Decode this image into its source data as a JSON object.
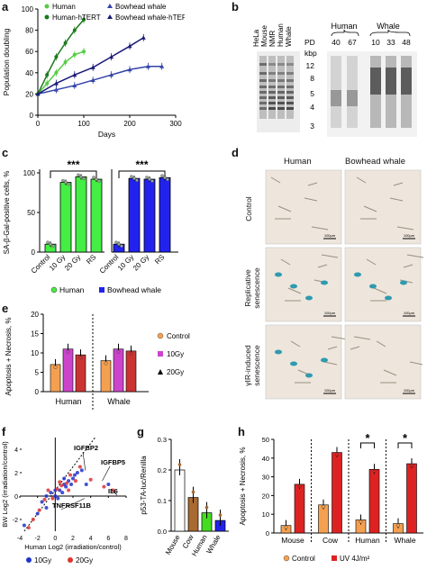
{
  "figure": {
    "panel_labels": [
      "a",
      "b",
      "c",
      "d",
      "e",
      "f",
      "g",
      "h"
    ]
  },
  "panel_a": {
    "legend": [
      "Human",
      "Human-hTERT",
      "Bowhead whale",
      "Bowhead whale-hTERT"
    ],
    "xlabel": "Days",
    "ylabel": "Population doubling",
    "xticks": [
      "0",
      "100",
      "200",
      "300"
    ],
    "yticks": [
      "0",
      "20",
      "40",
      "60",
      "80",
      "100"
    ]
  },
  "panel_b": {
    "lanes": [
      "HeLa",
      "Mouse",
      "NMR",
      "Human",
      "Whale"
    ],
    "group_human": "Human",
    "group_whale": "Whale",
    "pd_label": "PD",
    "pd_values": [
      "40",
      "67",
      "10",
      "33",
      "48"
    ],
    "kbp_label": "kbp",
    "kbp_values": [
      "12",
      "8",
      "5",
      "4",
      "3"
    ]
  },
  "panel_c": {
    "ylabel": "SA-β-Gal-positive cells, %",
    "categories": [
      "Control",
      "10 Gy",
      "20 Gy",
      "RS"
    ],
    "yticks": [
      "0",
      "50",
      "100"
    ],
    "sig": [
      "***",
      "***"
    ],
    "legend": [
      "Human",
      "Bowhead whale"
    ]
  },
  "panel_d": {
    "col_headers": [
      "Human",
      "Bowhead whale"
    ],
    "row_labels": [
      "Control",
      "Replicative senescence",
      "γIR-induced senescence"
    ],
    "scale_bar": "100μm"
  },
  "panel_e": {
    "ylabel": "Apoptosis + Necrosis, %",
    "yticks": [
      "0",
      "5",
      "10",
      "15",
      "20"
    ],
    "groups": [
      "Human",
      "Whale"
    ],
    "legend": [
      "Control",
      "10Gy",
      "20Gy"
    ]
  },
  "panel_f": {
    "xlabel": "Human Log2 (irradiation/control)",
    "ylabel": "BW Log2 (irradiation/control)",
    "xticks": [
      "-4",
      "-2",
      "0",
      "2",
      "4",
      "6",
      "8"
    ],
    "yticks": [
      "-2",
      "0",
      "2",
      "4"
    ],
    "annotations": [
      "IGFBP2",
      "IGFBP5",
      "IL6",
      "TNFRSF11B"
    ],
    "legend": [
      "10Gy",
      "20Gy"
    ]
  },
  "panel_g": {
    "ylabel": "p53-TA-luc/Renilla",
    "categories": [
      "Mouse",
      "Cow",
      "Human",
      "Whale"
    ],
    "yticks": [
      "0.0",
      "0.1",
      "0.2",
      "0.3"
    ]
  },
  "panel_h": {
    "ylabel": "Apoptosis + Necrosis, %",
    "groups": [
      "Mouse",
      "Cow",
      "Human",
      "Whale"
    ],
    "yticks": [
      "0",
      "10",
      "20",
      "30",
      "40",
      "50"
    ],
    "sig": [
      "*",
      "*"
    ],
    "legend": [
      "Control",
      "UV 4J/m²"
    ]
  },
  "chart_data": [
    {
      "panel": "a",
      "type": "line",
      "xlabel": "Days",
      "ylabel": "Population doubling",
      "xlim": [
        0,
        300
      ],
      "ylim": [
        0,
        100
      ],
      "series": [
        {
          "name": "Human",
          "color": "#55cc44",
          "x": [
            0,
            20,
            40,
            60,
            80,
            100
          ],
          "y": [
            20,
            30,
            40,
            50,
            57,
            60
          ]
        },
        {
          "name": "Human-hTERT",
          "color": "#1a7a1a",
          "x": [
            0,
            20,
            40,
            60,
            80,
            100
          ],
          "y": [
            20,
            38,
            55,
            68,
            80,
            90
          ]
        },
        {
          "name": "Bowhead whale",
          "color": "#3344aa",
          "x": [
            0,
            40,
            80,
            120,
            160,
            200,
            240,
            270
          ],
          "y": [
            20,
            24,
            28,
            33,
            38,
            43,
            46,
            46
          ]
        },
        {
          "name": "Bowhead whale-hTERT",
          "color": "#1a1a77",
          "x": [
            0,
            40,
            80,
            120,
            160,
            200,
            230
          ],
          "y": [
            20,
            30,
            38,
            45,
            55,
            65,
            73
          ]
        }
      ]
    },
    {
      "panel": "c",
      "type": "bar",
      "ylabel": "SA-β-Gal-positive cells, %",
      "categories": [
        "Control",
        "10 Gy",
        "20 Gy",
        "RS"
      ],
      "ylim": [
        0,
        100
      ],
      "series": [
        {
          "name": "Human",
          "color": "#44ee44",
          "values": [
            10,
            88,
            95,
            92
          ]
        },
        {
          "name": "Bowhead whale",
          "color": "#2222ee",
          "values": [
            10,
            93,
            92,
            94
          ]
        }
      ]
    },
    {
      "panel": "e",
      "type": "bar",
      "ylabel": "Apoptosis + Necrosis, %",
      "categories": [
        "Human",
        "Whale"
      ],
      "ylim": [
        0,
        20
      ],
      "series": [
        {
          "name": "Control",
          "color": "#f5a050",
          "values": [
            7,
            8
          ]
        },
        {
          "name": "10Gy",
          "color": "#cc44cc",
          "values": [
            11,
            11
          ]
        },
        {
          "name": "20Gy",
          "color": "#cc3333",
          "values": [
            9.5,
            10.5
          ]
        }
      ]
    },
    {
      "panel": "f",
      "type": "scatter",
      "xlabel": "Human Log2 (irradiation/control)",
      "ylabel": "BW Log2 (irradiation/control)",
      "xlim": [
        -4,
        8
      ],
      "ylim": [
        -3,
        5
      ],
      "series": [
        {
          "name": "10Gy",
          "color": "#2233cc",
          "points": [
            [
              -3.5,
              -2.5
            ],
            [
              -2,
              -1.5
            ],
            [
              -1.5,
              -0.5
            ],
            [
              -1,
              0
            ],
            [
              -0.5,
              0.3
            ],
            [
              0,
              0.5
            ],
            [
              0,
              0
            ],
            [
              0.5,
              0.5
            ],
            [
              1,
              1
            ],
            [
              1.2,
              0.8
            ],
            [
              1.5,
              1.3
            ],
            [
              2,
              1.5
            ],
            [
              2.5,
              2
            ],
            [
              3,
              2.2
            ],
            [
              -1,
              -1
            ],
            [
              0.3,
              -0.2
            ],
            [
              0.8,
              0.3
            ],
            [
              1.8,
              1
            ],
            [
              2.2,
              1.8
            ],
            [
              1,
              1.5
            ],
            [
              3.5,
              1
            ],
            [
              6,
              1
            ]
          ]
        },
        {
          "name": "20Gy",
          "color": "#dd3333",
          "points": [
            [
              -3,
              -2.7
            ],
            [
              -2.5,
              -2
            ],
            [
              -1.8,
              -1.2
            ],
            [
              -1.2,
              -0.3
            ],
            [
              -0.3,
              -0.2
            ],
            [
              0.2,
              0.6
            ],
            [
              0.7,
              0.9
            ],
            [
              1.3,
              1.1
            ],
            [
              1.7,
              1.8
            ],
            [
              2.3,
              1.3
            ],
            [
              2.8,
              2.5
            ],
            [
              -0.8,
              0.5
            ],
            [
              0.5,
              1.2
            ],
            [
              1.5,
              0.5
            ],
            [
              4,
              1.4
            ],
            [
              5.5,
              0.8
            ],
            [
              6.5,
              0.5
            ]
          ]
        }
      ]
    },
    {
      "panel": "g",
      "type": "bar",
      "ylabel": "p53-TA-luc/Renilla",
      "categories": [
        "Mouse",
        "Cow",
        "Human",
        "Whale"
      ],
      "ylim": [
        0,
        0.3
      ],
      "colors": [
        "#ffffff",
        "#a86a30",
        "#44dd22",
        "#2222ee"
      ],
      "values": [
        0.2,
        0.11,
        0.06,
        0.035
      ]
    },
    {
      "panel": "h",
      "type": "bar",
      "ylabel": "Apoptosis + Necrosis, %",
      "categories": [
        "Mouse",
        "Cow",
        "Human",
        "Whale"
      ],
      "ylim": [
        0,
        50
      ],
      "series": [
        {
          "name": "Control",
          "color": "#f5a050",
          "values": [
            4,
            15,
            7,
            5
          ]
        },
        {
          "name": "UV 4J/m²",
          "color": "#dd2222",
          "values": [
            26,
            43,
            34,
            37
          ]
        }
      ]
    }
  ]
}
